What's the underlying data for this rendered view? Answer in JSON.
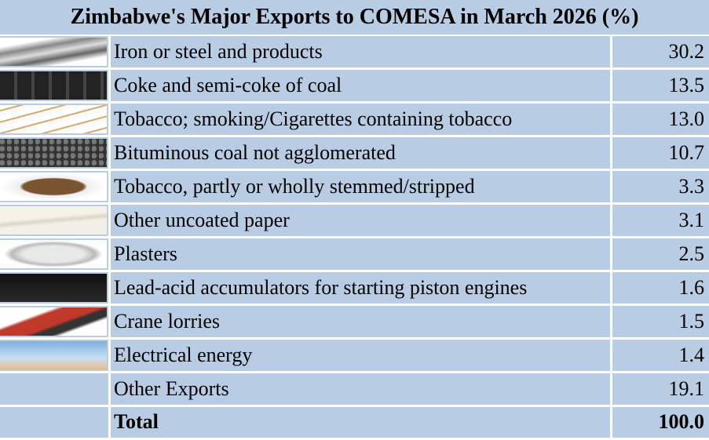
{
  "header": {
    "title": "Zimbabwe's Major Exports to COMESA in March 2026 (%)"
  },
  "table": {
    "rows": [
      [
        "Iron or steel and products",
        "30.2"
      ],
      [
        "Coke and semi-coke of coal",
        "13.5"
      ],
      [
        "Tobacco; smoking/Cigarettes containing tobacco",
        "13.0"
      ],
      [
        "Bituminous coal not agglomerated",
        "10.7"
      ],
      [
        "Tobacco, partly or wholly stemmed/stripped",
        "3.3"
      ],
      [
        "Other uncoated paper",
        "3.1"
      ],
      [
        "Plasters",
        "2.5"
      ],
      [
        "Lead-acid accumulators for starting piston engines",
        "1.6"
      ],
      [
        "Crane lorries",
        "1.5"
      ],
      [
        "Electrical energy",
        "1.4"
      ],
      [
        "Other Exports",
        "19.1"
      ],
      [
        "Total",
        "100.0"
      ]
    ]
  }
}
